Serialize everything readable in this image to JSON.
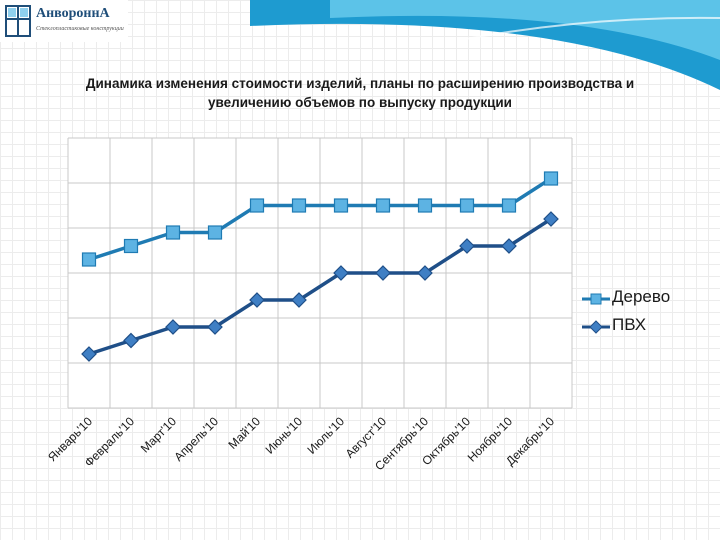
{
  "brand": {
    "name": "АнвороннА",
    "tagline": "Стеклопластиковые конструкции"
  },
  "chart_data": {
    "type": "line",
    "title": "Динамика изменения стоимости изделий, планы по расширению производства и увеличению объемов по выпуску продукции",
    "categories": [
      "Январь'10",
      "Февраль'10",
      "Март'10",
      "Апрель'10",
      "Май'10",
      "Июнь'10",
      "Июль'10",
      "Август'10",
      "Сентябрь'10",
      "Октябрь'10",
      "Ноябрь'10",
      "Декабрь'10"
    ],
    "series": [
      {
        "name": "Дерево",
        "marker": "square",
        "color": "#1f7bb3",
        "values": [
          5.5,
          6.0,
          6.5,
          6.5,
          7.5,
          7.5,
          7.5,
          7.5,
          7.5,
          7.5,
          7.5,
          8.5
        ]
      },
      {
        "name": "ПВХ",
        "marker": "diamond",
        "color": "#1f4f88",
        "values": [
          2.0,
          2.5,
          3.0,
          3.0,
          4.0,
          4.0,
          5.0,
          5.0,
          5.0,
          6.0,
          6.0,
          7.0
        ]
      }
    ],
    "ylim": [
      0,
      10
    ],
    "grid": true,
    "legend": "right",
    "xlabel": "",
    "ylabel": ""
  }
}
